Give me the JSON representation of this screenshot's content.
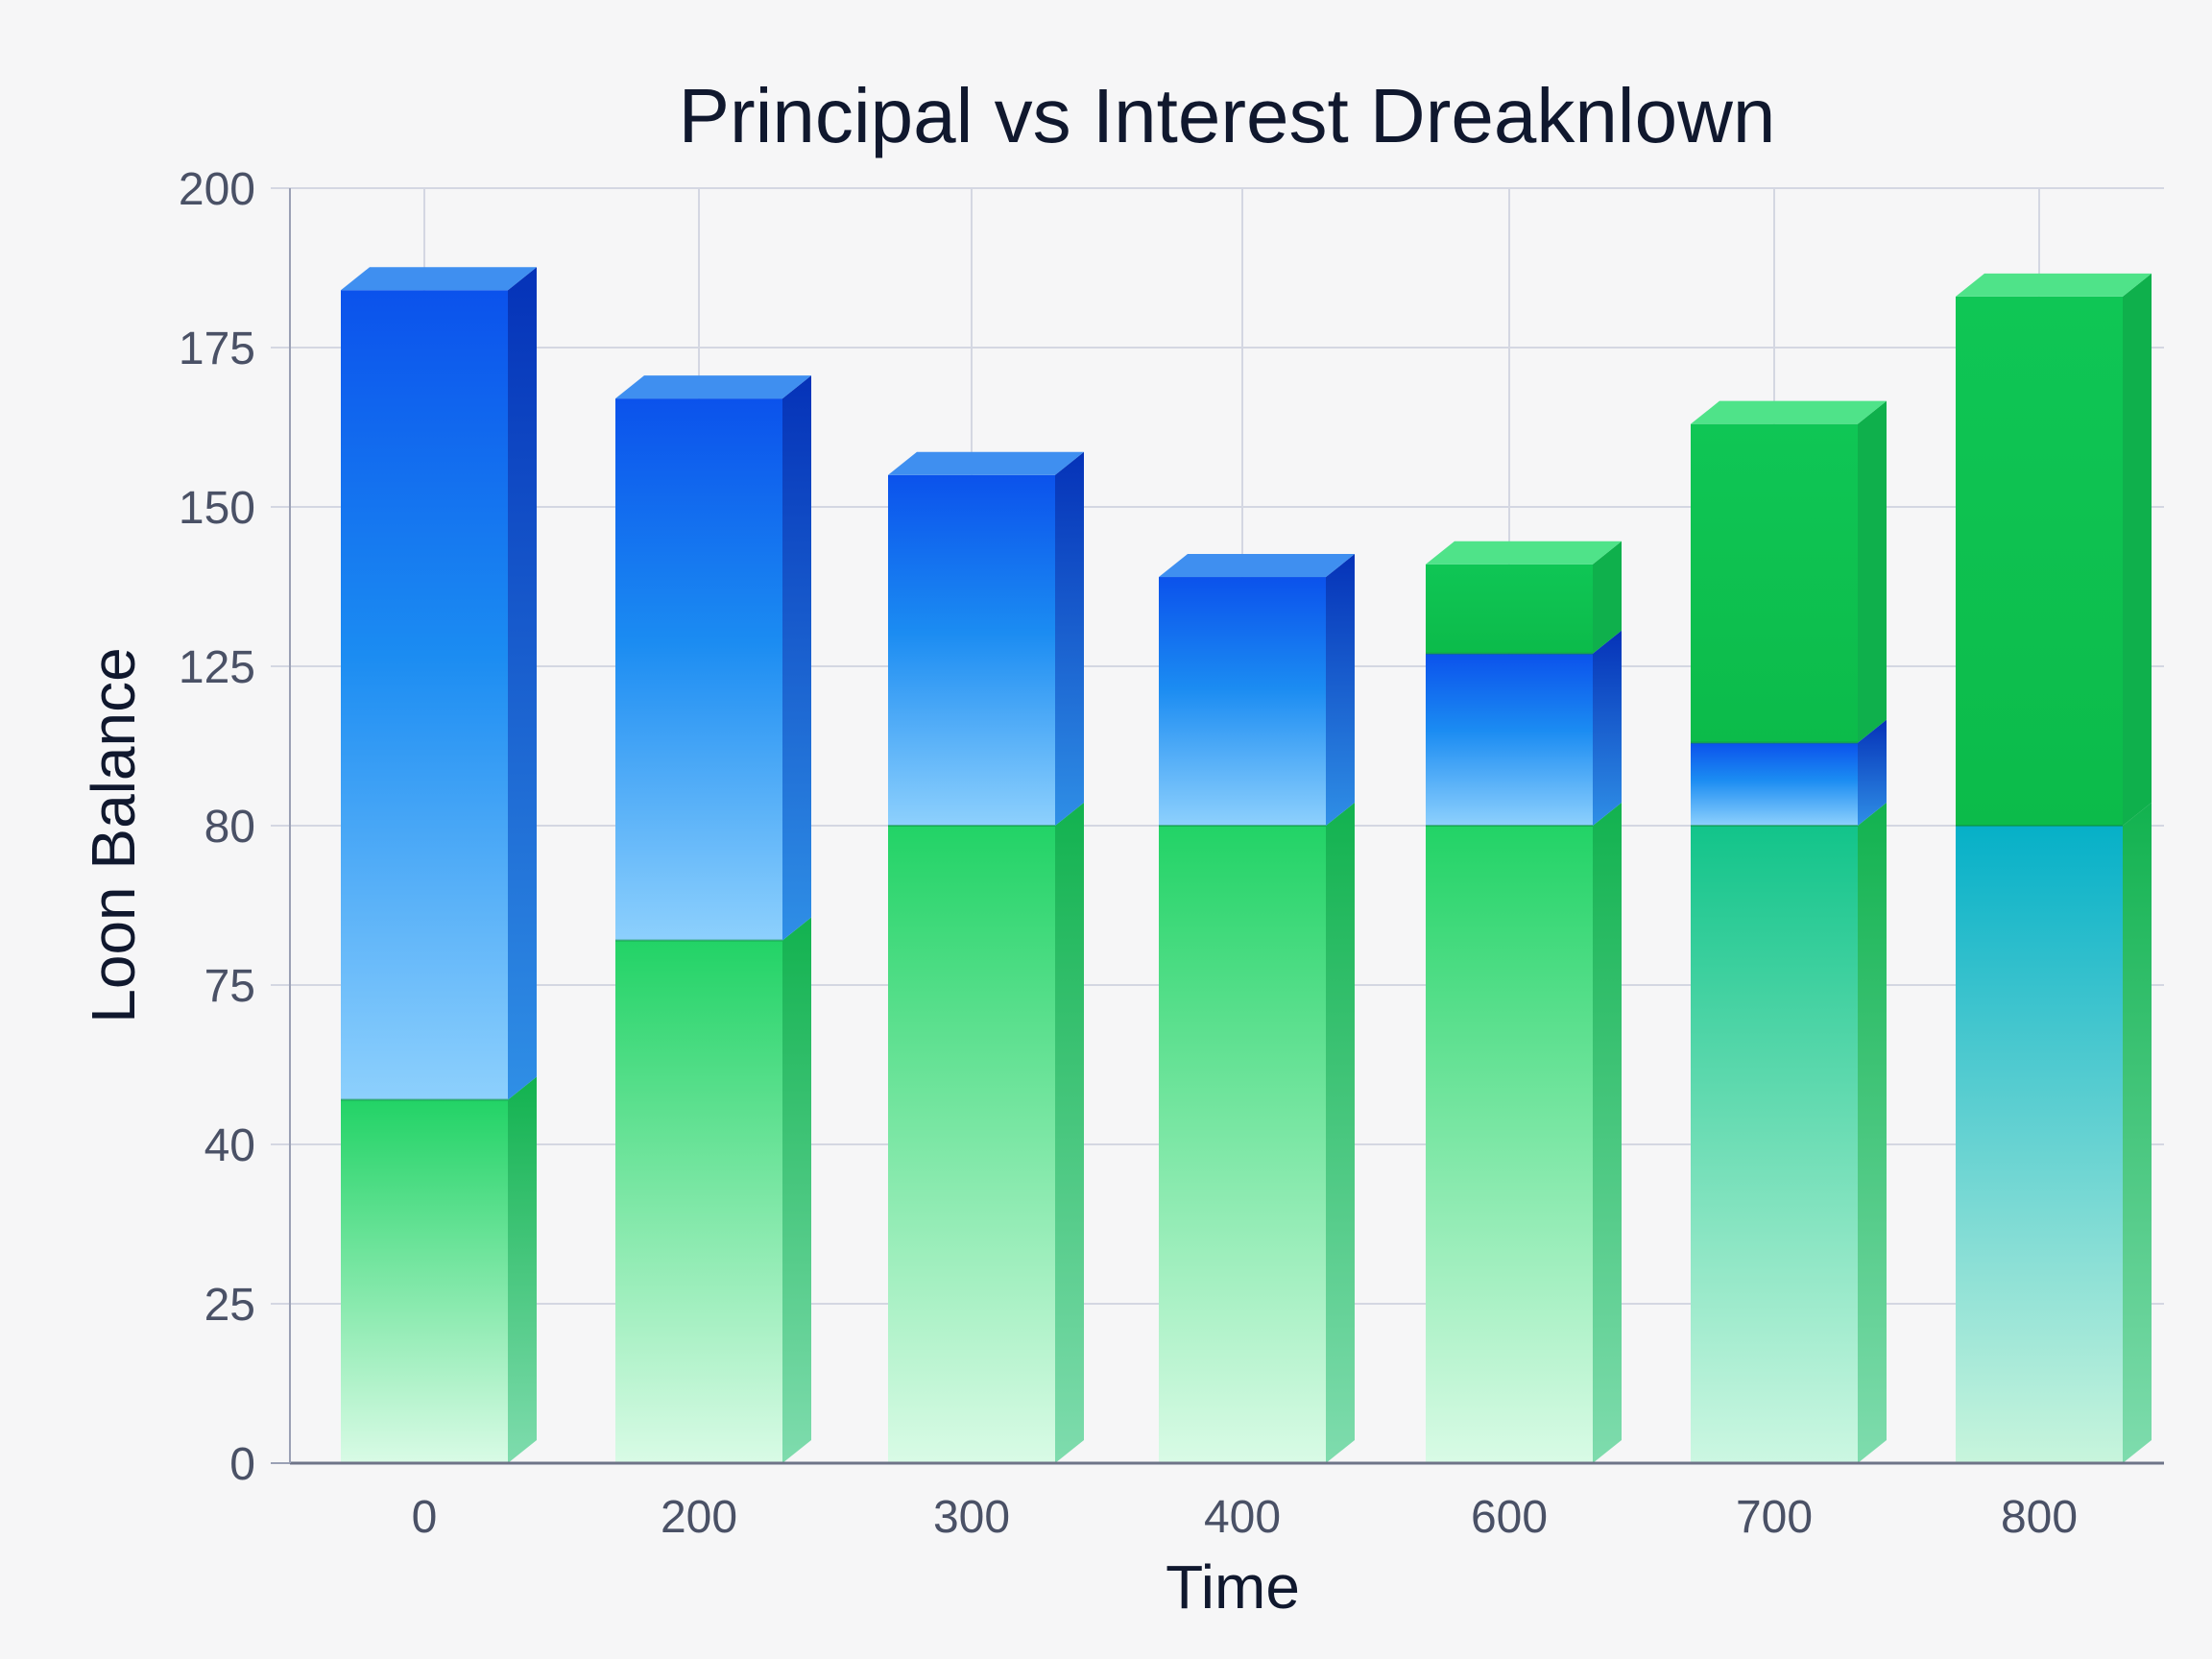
{
  "chart_data": {
    "type": "bar",
    "stacked": true,
    "three_d": true,
    "title": "Principal vs Interest Dreaknlown",
    "xlabel": "Time",
    "ylabel": "Loon Balance",
    "categories": [
      "0",
      "200",
      "300",
      "400",
      "600",
      "700",
      "800"
    ],
    "y_tick_labels": [
      "0",
      "25",
      "40",
      "75",
      "80",
      "125",
      "150",
      "175",
      "200"
    ],
    "grid": true,
    "series": [
      {
        "color": "#22c55e",
        "values": [
          57,
          82,
          100,
          100,
          100,
          100,
          100
        ]
      },
      {
        "color": "#1d6ff2",
        "values": [
          127,
          85,
          55,
          39,
          27,
          13,
          0
        ]
      },
      {
        "color": "#1fd06a",
        "values": [
          0,
          0,
          0,
          0,
          14,
          50,
          83
        ]
      }
    ]
  }
}
